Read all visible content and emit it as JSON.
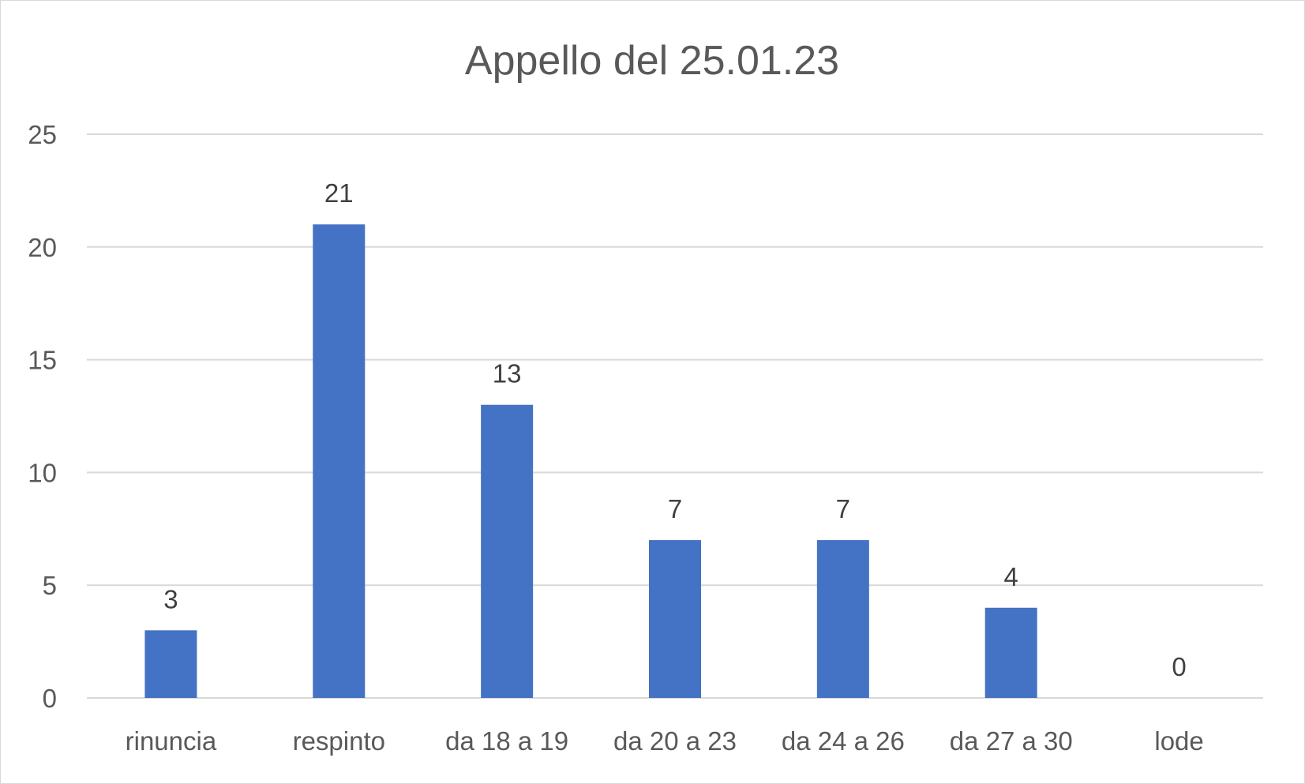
{
  "chart_data": {
    "type": "bar",
    "title": "Appello del 25.01.23",
    "xlabel": "",
    "ylabel": "",
    "categories": [
      "rinuncia",
      "respinto",
      "da 18 a 19",
      "da 20 a 23",
      "da 24 a 26",
      "da 27 a 30",
      "lode"
    ],
    "values": [
      3,
      21,
      13,
      7,
      7,
      4,
      0
    ],
    "ylim": [
      0,
      25
    ],
    "yticks": [
      "0",
      "5",
      "10",
      "15",
      "20",
      "25"
    ],
    "data_labels": [
      "3",
      "21",
      "13",
      "7",
      "7",
      "4",
      "0"
    ],
    "grid": true,
    "legend": "none",
    "bar_color": "#4472c4"
  }
}
